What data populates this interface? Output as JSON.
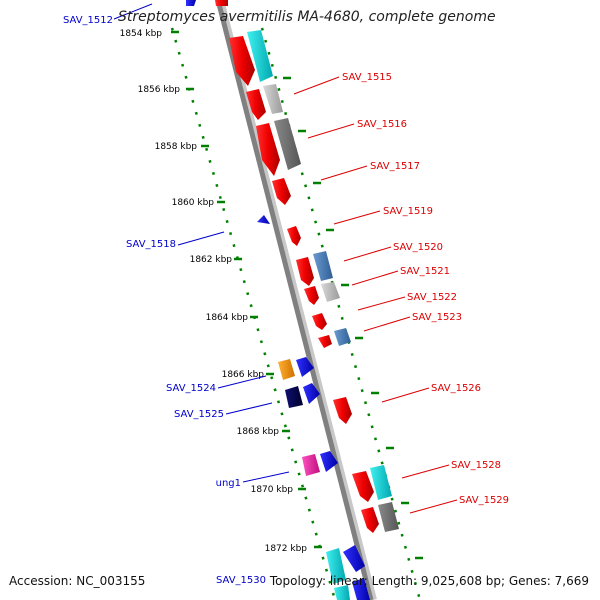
{
  "title": "Streptomyces avermitilis MA-4680, complete genome",
  "footer": {
    "accession": "Accession: NC_003155",
    "stats": "Topology: linear; Length: 9,025,608 bp; Genes: 7,669"
  },
  "colors": {
    "backbone": "#808080",
    "ruler": "#008000",
    "left_label": "#0000cc",
    "right_label": "#dd0000"
  },
  "ruler_labels": [
    "1854 kbp",
    "1856 kbp",
    "1858 kbp",
    "1860 kbp",
    "1862 kbp",
    "1864 kbp",
    "1866 kbp",
    "1868 kbp",
    "1870 kbp",
    "1872 kbp"
  ],
  "gene_labels_left": [
    "SAV_1512",
    "SAV_1518",
    "SAV_1524",
    "SAV_1525",
    "ung1",
    "SAV_1530"
  ],
  "gene_labels_right": [
    "SAV_1515",
    "SAV_1516",
    "SAV_1517",
    "SAV_1519",
    "SAV_1520",
    "SAV_1521",
    "SAV_1522",
    "SAV_1523",
    "SAV_1526",
    "SAV_1528",
    "SAV_1529"
  ]
}
